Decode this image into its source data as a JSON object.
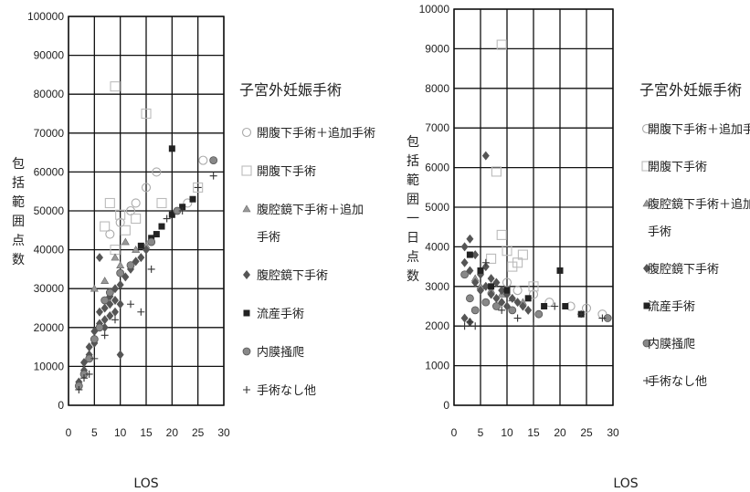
{
  "chart_data": [
    {
      "type": "scatter",
      "title": "子宮外妊娠手術",
      "xlabel": "LOS",
      "ylabel": "包括範囲点数",
      "xlim": [
        0,
        30
      ],
      "ylim": [
        0,
        100000
      ],
      "x_ticks": [
        "0",
        "5",
        "10",
        "15",
        "20",
        "25",
        "30"
      ],
      "y_ticks": [
        "0",
        "10000",
        "20000",
        "30000",
        "40000",
        "50000",
        "60000",
        "70000",
        "80000",
        "90000",
        "100000"
      ],
      "grid": true,
      "legend_position": "right",
      "legend": [
        {
          "name": "開腹下手術＋追加手術",
          "marker": "circle-open"
        },
        {
          "name": "開腹下手術",
          "marker": "square-open"
        },
        {
          "name": "腹腔鏡下手術＋追加\n手術",
          "marker": "triangle"
        },
        {
          "name": "腹腔鏡下手術",
          "marker": "diamond"
        },
        {
          "name": "流産手術",
          "marker": "square"
        },
        {
          "name": "内膜掻爬",
          "marker": "circle-hatched"
        },
        {
          "name": "手術なし他",
          "marker": "plus"
        }
      ],
      "series": [
        {
          "name": "開腹下手術＋追加手術",
          "points": [
            [
              8,
              44000
            ],
            [
              10,
              47000
            ],
            [
              12,
              50000
            ],
            [
              13,
              52000
            ],
            [
              15,
              56000
            ],
            [
              17,
              60000
            ],
            [
              23,
              52000
            ],
            [
              26,
              63000
            ]
          ]
        },
        {
          "name": "開腹下手術",
          "points": [
            [
              9,
              82000
            ],
            [
              15,
              75000
            ],
            [
              8,
              52000
            ],
            [
              10,
              49000
            ],
            [
              11,
              45000
            ],
            [
              13,
              48000
            ],
            [
              7,
              46000
            ],
            [
              9,
              40000
            ],
            [
              18,
              52000
            ],
            [
              25,
              56000
            ]
          ]
        },
        {
          "name": "腹腔鏡下手術＋追加\n手術",
          "points": [
            [
              5,
              30000
            ],
            [
              7,
              32000
            ],
            [
              9,
              38000
            ],
            [
              10,
              36000
            ],
            [
              11,
              42000
            ],
            [
              13,
              40000
            ],
            [
              15,
              41000
            ]
          ]
        },
        {
          "name": "腹腔鏡下手術",
          "points": [
            [
              2,
              6000
            ],
            [
              3,
              9000
            ],
            [
              3,
              11000
            ],
            [
              4,
              13000
            ],
            [
              4,
              15000
            ],
            [
              5,
              16000
            ],
            [
              5,
              19000
            ],
            [
              6,
              21000
            ],
            [
              6,
              38000
            ],
            [
              6,
              24000
            ],
            [
              7,
              22000
            ],
            [
              7,
              25000
            ],
            [
              8,
              23000
            ],
            [
              8,
              28000
            ],
            [
              9,
              27000
            ],
            [
              9,
              30000
            ],
            [
              10,
              31000
            ],
            [
              10,
              13000
            ],
            [
              10,
              26000
            ],
            [
              11,
              33000
            ],
            [
              12,
              35000
            ],
            [
              13,
              37000
            ],
            [
              14,
              38000
            ],
            [
              15,
              40000
            ],
            [
              8,
              26000
            ],
            [
              9,
              24000
            ],
            [
              7,
              20000
            ]
          ]
        },
        {
          "name": "流産手術",
          "points": [
            [
              17,
              44000
            ],
            [
              18,
              46000
            ],
            [
              20,
              66000
            ],
            [
              20,
              49000
            ],
            [
              22,
              51000
            ],
            [
              24,
              53000
            ],
            [
              16,
              43000
            ],
            [
              14,
              41000
            ]
          ]
        },
        {
          "name": "内膜掻爬",
          "points": [
            [
              2,
              5000
            ],
            [
              3,
              8000
            ],
            [
              4,
              12000
            ],
            [
              5,
              17000
            ],
            [
              6,
              20000
            ],
            [
              7,
              27000
            ],
            [
              8,
              29000
            ],
            [
              10,
              34000
            ],
            [
              12,
              36000
            ],
            [
              16,
              42000
            ],
            [
              21,
              50000
            ],
            [
              28,
              63000
            ]
          ]
        },
        {
          "name": "手術なし他",
          "points": [
            [
              2,
              4000
            ],
            [
              3,
              7000
            ],
            [
              4,
              8000
            ],
            [
              5,
              12000
            ],
            [
              7,
              18000
            ],
            [
              9,
              22000
            ],
            [
              12,
              26000
            ],
            [
              14,
              24000
            ],
            [
              16,
              35000
            ],
            [
              19,
              48000
            ],
            [
              22,
              50000
            ],
            [
              28,
              59000
            ],
            [
              25,
              56000
            ]
          ]
        }
      ]
    },
    {
      "type": "scatter",
      "title": "子宮外妊娠手術",
      "xlabel": "LOS",
      "ylabel": "包括範囲一日点数",
      "xlim": [
        0,
        30
      ],
      "ylim": [
        0,
        10000
      ],
      "x_ticks": [
        "0",
        "5",
        "10",
        "15",
        "20",
        "25",
        "30"
      ],
      "y_ticks": [
        "0",
        "1000",
        "2000",
        "3000",
        "4000",
        "5000",
        "6000",
        "7000",
        "8000",
        "9000",
        "10000"
      ],
      "grid": true,
      "legend_position": "right",
      "legend": [
        {
          "name": "開腹下手術＋追加手術",
          "marker": "circle-open"
        },
        {
          "name": "開腹下手術",
          "marker": "square-open"
        },
        {
          "name": "腹腔鏡下手術＋追加\n手術",
          "marker": "triangle"
        },
        {
          "name": "腹腔鏡下手術",
          "marker": "diamond"
        },
        {
          "name": "流産手術",
          "marker": "square"
        },
        {
          "name": "内膜掻爬",
          "marker": "circle-hatched"
        },
        {
          "name": "手術なし他",
          "marker": "plus"
        }
      ],
      "series": [
        {
          "name": "開腹下手術＋追加手術",
          "points": [
            [
              10,
              3100
            ],
            [
              12,
              2900
            ],
            [
              15,
              2800
            ],
            [
              18,
              2600
            ],
            [
              22,
              2500
            ],
            [
              25,
              2450
            ],
            [
              28,
              2300
            ]
          ]
        },
        {
          "name": "開腹下手術",
          "points": [
            [
              9,
              9100
            ],
            [
              8,
              5900
            ],
            [
              9,
              4300
            ],
            [
              10,
              3900
            ],
            [
              11,
              3500
            ],
            [
              12,
              3600
            ],
            [
              13,
              3800
            ],
            [
              7,
              3700
            ],
            [
              15,
              3000
            ]
          ]
        },
        {
          "name": "腹腔鏡下手術＋追加\n手術",
          "points": [
            [
              4,
              3200
            ],
            [
              5,
              3000
            ],
            [
              7,
              2900
            ],
            [
              9,
              2800
            ],
            [
              11,
              2700
            ],
            [
              13,
              2600
            ]
          ]
        },
        {
          "name": "腹腔鏡下手術",
          "points": [
            [
              2,
              4000
            ],
            [
              2,
              3600
            ],
            [
              3,
              4200
            ],
            [
              3,
              3400
            ],
            [
              4,
              3800
            ],
            [
              4,
              3100
            ],
            [
              5,
              3300
            ],
            [
              5,
              2900
            ],
            [
              6,
              6300
            ],
            [
              6,
              3500
            ],
            [
              6,
              3000
            ],
            [
              7,
              3200
            ],
            [
              7,
              2800
            ],
            [
              8,
              3100
            ],
            [
              8,
              2700
            ],
            [
              9,
              2900
            ],
            [
              9,
              2600
            ],
            [
              10,
              2800
            ],
            [
              10,
              2500
            ],
            [
              11,
              2700
            ],
            [
              12,
              2600
            ],
            [
              13,
              2500
            ],
            [
              14,
              2400
            ],
            [
              2,
              2200
            ],
            [
              3,
              2100
            ]
          ]
        },
        {
          "name": "流産手術",
          "points": [
            [
              3,
              3800
            ],
            [
              5,
              3400
            ],
            [
              7,
              3000
            ],
            [
              10,
              2900
            ],
            [
              14,
              2700
            ],
            [
              20,
              3400
            ],
            [
              21,
              2500
            ],
            [
              24,
              2300
            ],
            [
              17,
              2500
            ]
          ]
        },
        {
          "name": "内膜掻爬",
          "points": [
            [
              2,
              3300
            ],
            [
              3,
              2700
            ],
            [
              4,
              2400
            ],
            [
              6,
              2600
            ],
            [
              8,
              2500
            ],
            [
              11,
              2400
            ],
            [
              16,
              2300
            ],
            [
              29,
              2200
            ]
          ]
        },
        {
          "name": "手術なし他",
          "points": [
            [
              2,
              2000
            ],
            [
              3,
              2100
            ],
            [
              4,
              2000
            ],
            [
              6,
              3600
            ],
            [
              9,
              2400
            ],
            [
              12,
              2200
            ],
            [
              15,
              2000
            ],
            [
              19,
              2500
            ],
            [
              28,
              2200
            ],
            [
              24,
              2300
            ]
          ]
        }
      ]
    }
  ]
}
